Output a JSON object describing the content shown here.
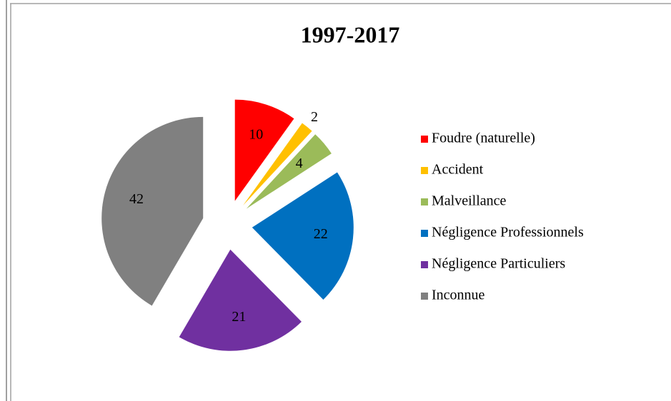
{
  "chart_data": {
    "type": "pie",
    "title": "1997-2017",
    "categories": [
      "Foudre (naturelle)",
      "Accident",
      "Malveillance",
      "Négligence Professionnels",
      "Négligence Particuliers",
      "Inconnue"
    ],
    "values": [
      10,
      2,
      4,
      22,
      21,
      42
    ],
    "colors": [
      "#ff0000",
      "#ffc000",
      "#9bbb59",
      "#0070c0",
      "#7030a0",
      "#808080"
    ],
    "legend": "right"
  }
}
